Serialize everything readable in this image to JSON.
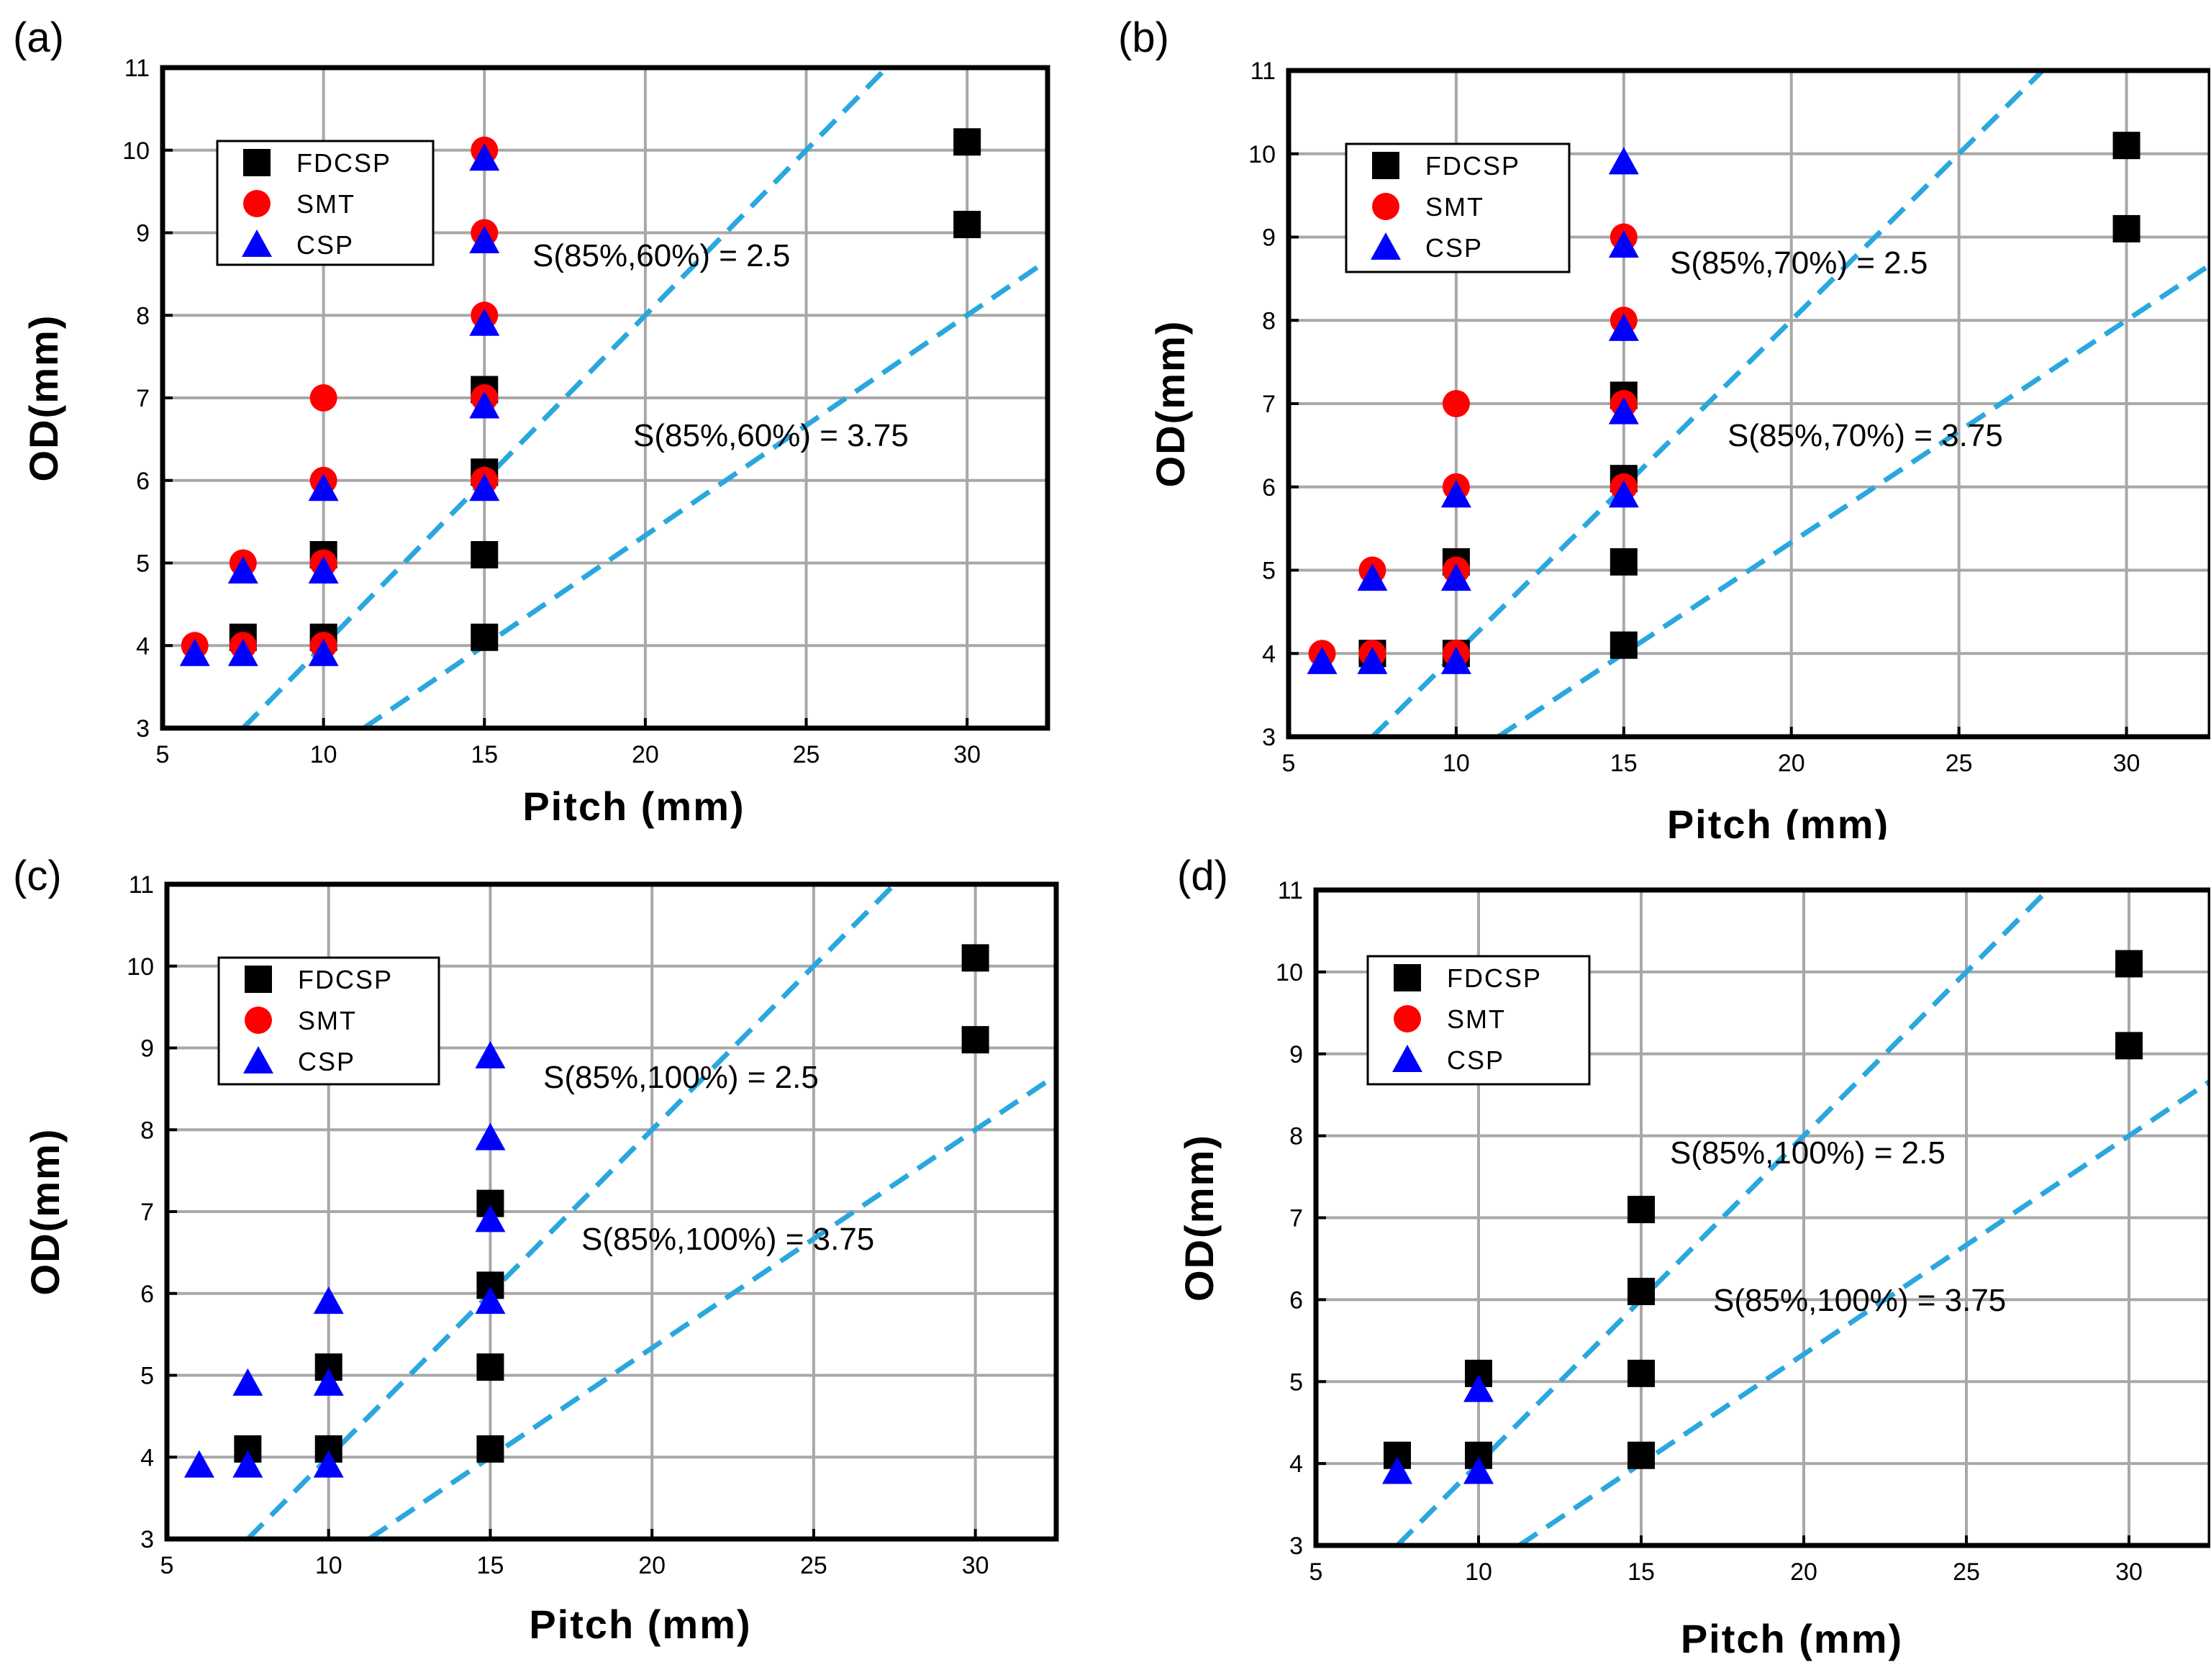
{
  "colors": {
    "fdcsp": "#000000",
    "smt": "#ff0000",
    "csp": "#0000ff",
    "line": "#2aa7df",
    "grid": "#a8a8a8"
  },
  "chart_data": [
    {
      "type": "scatter",
      "panel_label": "(a)",
      "xlabel": "Pitch (mm)",
      "ylabel": "OD(mm)",
      "xlim": [
        5,
        32.5
      ],
      "ylim": [
        3,
        11
      ],
      "xticks": [
        5,
        10,
        15,
        20,
        25,
        30
      ],
      "yticks": [
        3,
        4,
        5,
        6,
        7,
        8,
        9,
        10,
        11
      ],
      "grid": true,
      "legend": [
        "FDCSP",
        "SMT",
        "CSP"
      ],
      "series": [
        {
          "name": "FDCSP",
          "marker": "square",
          "points": [
            [
              7.5,
              4.1
            ],
            [
              10,
              4.1
            ],
            [
              10,
              5.1
            ],
            [
              15,
              4.1
            ],
            [
              15,
              5.1
            ],
            [
              15,
              6.1
            ],
            [
              15,
              7.1
            ],
            [
              30,
              9.1
            ],
            [
              30,
              10.1
            ]
          ]
        },
        {
          "name": "SMT",
          "marker": "circle",
          "points": [
            [
              6,
              4
            ],
            [
              7.5,
              4
            ],
            [
              7.5,
              5
            ],
            [
              10,
              4
            ],
            [
              10,
              5
            ],
            [
              10,
              6
            ],
            [
              10,
              7
            ],
            [
              15,
              6
            ],
            [
              15,
              7
            ],
            [
              15,
              8
            ],
            [
              15,
              9
            ],
            [
              15,
              10
            ]
          ]
        },
        {
          "name": "CSP",
          "marker": "triangle",
          "points": [
            [
              6,
              3.9
            ],
            [
              7.5,
              3.9
            ],
            [
              7.5,
              4.9
            ],
            [
              10,
              3.9
            ],
            [
              10,
              4.9
            ],
            [
              10,
              5.9
            ],
            [
              15,
              5.9
            ],
            [
              15,
              6.9
            ],
            [
              15,
              7.9
            ],
            [
              15,
              8.9
            ],
            [
              15,
              9.9
            ]
          ]
        }
      ],
      "lines": [
        {
          "label": "S(85%,60%) = 2.5",
          "slope": 0.4,
          "x_range": [
            7.5,
            27.5
          ]
        },
        {
          "label": "S(85%,60%) = 3.75",
          "slope": 0.2667,
          "x_range": [
            11.25,
            32.5
          ]
        }
      ]
    },
    {
      "type": "scatter",
      "panel_label": "(b)",
      "xlabel": "Pitch (mm)",
      "ylabel": "OD(mm)",
      "xlim": [
        5,
        32.5
      ],
      "ylim": [
        3,
        11
      ],
      "xticks": [
        5,
        10,
        15,
        20,
        25,
        30
      ],
      "yticks": [
        3,
        4,
        5,
        6,
        7,
        8,
        9,
        10,
        11
      ],
      "grid": true,
      "legend": [
        "FDCSP",
        "SMT",
        "CSP"
      ],
      "series": [
        {
          "name": "FDCSP",
          "marker": "square",
          "points": [
            [
              7.5,
              4
            ],
            [
              10,
              4
            ],
            [
              10,
              5.1
            ],
            [
              15,
              4.1
            ],
            [
              15,
              5.1
            ],
            [
              15,
              6.1
            ],
            [
              15,
              7.1
            ],
            [
              30,
              9.1
            ],
            [
              30,
              10.1
            ]
          ]
        },
        {
          "name": "SMT",
          "marker": "circle",
          "points": [
            [
              6,
              4
            ],
            [
              7.5,
              4
            ],
            [
              7.5,
              5
            ],
            [
              10,
              4
            ],
            [
              10,
              5
            ],
            [
              10,
              6
            ],
            [
              10,
              7
            ],
            [
              15,
              6
            ],
            [
              15,
              7
            ],
            [
              15,
              8
            ],
            [
              15,
              9
            ]
          ]
        },
        {
          "name": "CSP",
          "marker": "triangle",
          "points": [
            [
              6,
              3.9
            ],
            [
              7.5,
              3.9
            ],
            [
              7.5,
              4.9
            ],
            [
              10,
              3.9
            ],
            [
              10,
              4.9
            ],
            [
              10,
              5.9
            ],
            [
              15,
              5.9
            ],
            [
              15,
              6.9
            ],
            [
              15,
              7.9
            ],
            [
              15,
              8.9
            ],
            [
              15,
              9.9
            ]
          ]
        }
      ],
      "lines": [
        {
          "label": "S(85%,70%) = 2.5",
          "slope": 0.4,
          "x_range": [
            7.5,
            27.5
          ]
        },
        {
          "label": "S(85%,70%) = 3.75",
          "slope": 0.2667,
          "x_range": [
            11.25,
            32.5
          ]
        }
      ]
    },
    {
      "type": "scatter",
      "panel_label": "(c)",
      "xlabel": "Pitch (mm)",
      "ylabel": "OD(mm)",
      "xlim": [
        5,
        32.5
      ],
      "ylim": [
        3,
        11
      ],
      "xticks": [
        5,
        10,
        15,
        20,
        25,
        30
      ],
      "yticks": [
        3,
        4,
        5,
        6,
        7,
        8,
        9,
        10,
        11
      ],
      "grid": true,
      "legend": [
        "FDCSP",
        "SMT",
        "CSP"
      ],
      "series": [
        {
          "name": "FDCSP",
          "marker": "square",
          "points": [
            [
              7.5,
              4.1
            ],
            [
              10,
              4.1
            ],
            [
              10,
              5.1
            ],
            [
              15,
              4.1
            ],
            [
              15,
              5.1
            ],
            [
              15,
              6.1
            ],
            [
              15,
              7.1
            ],
            [
              30,
              9.1
            ],
            [
              30,
              10.1
            ]
          ]
        },
        {
          "name": "SMT",
          "marker": "circle",
          "points": []
        },
        {
          "name": "CSP",
          "marker": "triangle",
          "points": [
            [
              6,
              3.9
            ],
            [
              7.5,
              3.9
            ],
            [
              7.5,
              4.9
            ],
            [
              10,
              3.9
            ],
            [
              10,
              4.9
            ],
            [
              10,
              5.9
            ],
            [
              15,
              5.9
            ],
            [
              15,
              6.9
            ],
            [
              15,
              7.9
            ],
            [
              15,
              8.9
            ]
          ]
        }
      ],
      "lines": [
        {
          "label": "S(85%,100%) = 2.5",
          "slope": 0.4,
          "x_range": [
            7.5,
            27.5
          ]
        },
        {
          "label": "S(85%,100%) = 3.75",
          "slope": 0.2667,
          "x_range": [
            11.25,
            32.5
          ]
        }
      ]
    },
    {
      "type": "scatter",
      "panel_label": "(d)",
      "xlabel": "Pitch (mm)",
      "ylabel": "OD(mm)",
      "xlim": [
        5,
        32.5
      ],
      "ylim": [
        3,
        11
      ],
      "xticks": [
        5,
        10,
        15,
        20,
        25,
        30
      ],
      "yticks": [
        3,
        4,
        5,
        6,
        7,
        8,
        9,
        10,
        11
      ],
      "grid": true,
      "legend": [
        "FDCSP",
        "SMT",
        "CSP"
      ],
      "series": [
        {
          "name": "FDCSP",
          "marker": "square",
          "points": [
            [
              7.5,
              4.1
            ],
            [
              10,
              4.1
            ],
            [
              10,
              5.1
            ],
            [
              15,
              4.1
            ],
            [
              15,
              5.1
            ],
            [
              15,
              6.1
            ],
            [
              15,
              7.1
            ],
            [
              30,
              9.1
            ],
            [
              30,
              10.1
            ]
          ]
        },
        {
          "name": "SMT",
          "marker": "circle",
          "points": []
        },
        {
          "name": "CSP",
          "marker": "triangle",
          "points": [
            [
              7.5,
              3.9
            ],
            [
              10,
              3.9
            ],
            [
              10,
              4.9
            ]
          ]
        }
      ],
      "lines": [
        {
          "label": "S(85%,100%) = 2.5",
          "slope": 0.4,
          "x_range": [
            7.5,
            27.5
          ]
        },
        {
          "label": "S(85%,100%) = 3.75",
          "slope": 0.2667,
          "x_range": [
            11.25,
            32.5
          ]
        }
      ]
    }
  ]
}
